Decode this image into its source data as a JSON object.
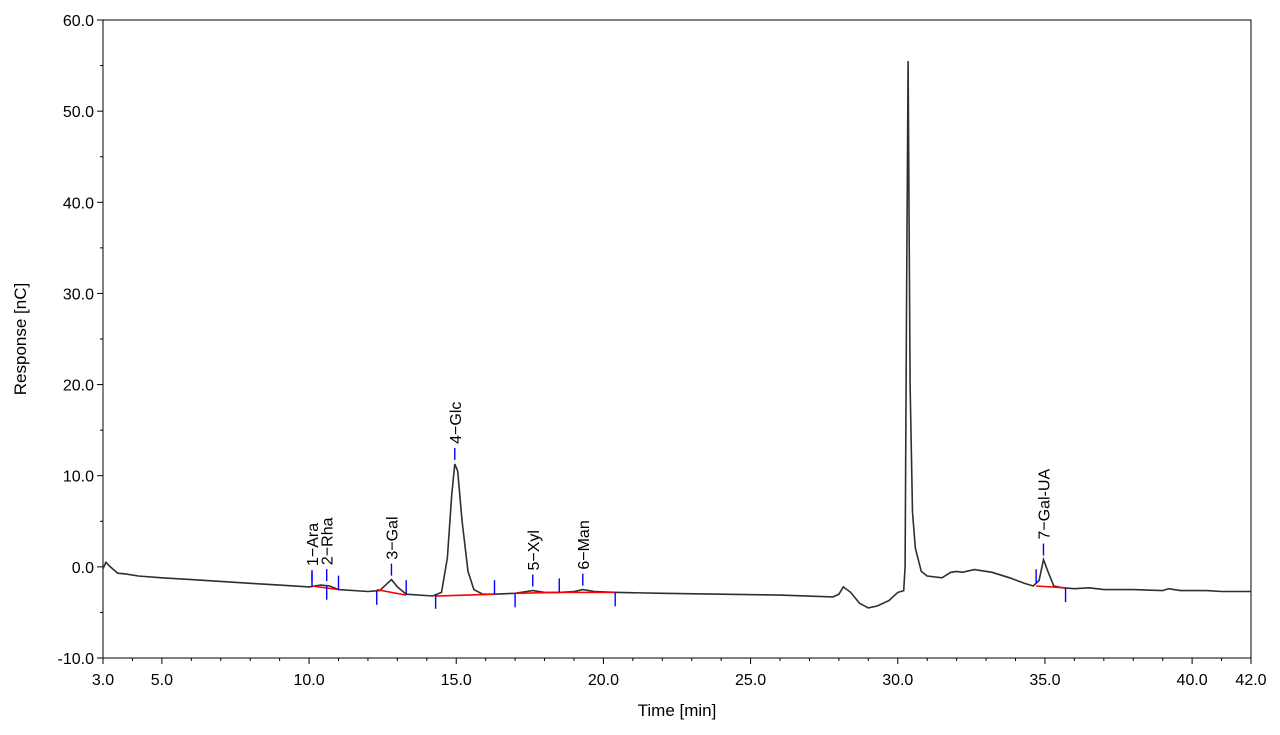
{
  "colors": {
    "trace": "#2f2f2f",
    "baseline": "#ff0000",
    "markers": "#0000ff",
    "axis": "#000000"
  },
  "chart_data": {
    "type": "line",
    "title": "",
    "xlabel": "Time [min]",
    "ylabel": "Response [nC]",
    "xlim": [
      3.0,
      42.0
    ],
    "ylim": [
      -10.0,
      60.0
    ],
    "grid": false,
    "x_ticks": [
      {
        "value": 3.0,
        "label": "3.0"
      },
      {
        "value": 5.0,
        "label": "5.0"
      },
      {
        "value": 10.0,
        "label": "10.0"
      },
      {
        "value": 15.0,
        "label": "15.0"
      },
      {
        "value": 20.0,
        "label": "20.0"
      },
      {
        "value": 25.0,
        "label": "25.0"
      },
      {
        "value": 30.0,
        "label": "30.0"
      },
      {
        "value": 35.0,
        "label": "35.0"
      },
      {
        "value": 40.0,
        "label": "40.0"
      },
      {
        "value": 42.0,
        "label": "42.0"
      }
    ],
    "y_ticks": [
      {
        "value": -10.0,
        "label": "-10.0"
      },
      {
        "value": 0.0,
        "label": "0.0"
      },
      {
        "value": 10.0,
        "label": "10.0"
      },
      {
        "value": 20.0,
        "label": "20.0"
      },
      {
        "value": 30.0,
        "label": "30.0"
      },
      {
        "value": 40.0,
        "label": "40.0"
      },
      {
        "value": 50.0,
        "label": "50.0"
      },
      {
        "value": 60.0,
        "label": "60.0"
      }
    ],
    "trace": [
      [
        3.0,
        -0.2
      ],
      [
        3.1,
        0.5
      ],
      [
        3.25,
        0.0
      ],
      [
        3.5,
        -0.7
      ],
      [
        3.8,
        -0.8
      ],
      [
        4.2,
        -1.0
      ],
      [
        5.0,
        -1.2
      ],
      [
        6.0,
        -1.4
      ],
      [
        7.0,
        -1.6
      ],
      [
        8.0,
        -1.8
      ],
      [
        9.0,
        -2.0
      ],
      [
        10.0,
        -2.2
      ],
      [
        10.4,
        -2.0
      ],
      [
        10.7,
        -2.1
      ],
      [
        11.0,
        -2.5
      ],
      [
        12.0,
        -2.7
      ],
      [
        12.4,
        -2.6
      ],
      [
        12.6,
        -2.0
      ],
      [
        12.8,
        -1.4
      ],
      [
        13.0,
        -2.2
      ],
      [
        13.3,
        -3.0
      ],
      [
        14.2,
        -3.2
      ],
      [
        14.5,
        -2.8
      ],
      [
        14.7,
        1.0
      ],
      [
        14.85,
        8.0
      ],
      [
        14.95,
        11.3
      ],
      [
        15.05,
        10.5
      ],
      [
        15.2,
        5.0
      ],
      [
        15.4,
        -0.5
      ],
      [
        15.6,
        -2.5
      ],
      [
        15.9,
        -3.0
      ],
      [
        16.3,
        -3.0
      ],
      [
        17.0,
        -2.9
      ],
      [
        17.6,
        -2.6
      ],
      [
        18.0,
        -2.8
      ],
      [
        18.5,
        -2.8
      ],
      [
        19.0,
        -2.7
      ],
      [
        19.3,
        -2.5
      ],
      [
        19.7,
        -2.7
      ],
      [
        20.5,
        -2.8
      ],
      [
        22.0,
        -2.9
      ],
      [
        24.0,
        -3.0
      ],
      [
        26.0,
        -3.1
      ],
      [
        27.8,
        -3.3
      ],
      [
        28.0,
        -3.0
      ],
      [
        28.15,
        -2.2
      ],
      [
        28.4,
        -2.8
      ],
      [
        28.7,
        -4.0
      ],
      [
        29.0,
        -4.5
      ],
      [
        29.3,
        -4.3
      ],
      [
        29.7,
        -3.7
      ],
      [
        30.0,
        -2.8
      ],
      [
        30.2,
        -2.6
      ],
      [
        30.25,
        0.0
      ],
      [
        30.3,
        30.0
      ],
      [
        30.35,
        55.5
      ],
      [
        30.42,
        20.0
      ],
      [
        30.5,
        6.0
      ],
      [
        30.6,
        2.0
      ],
      [
        30.8,
        -0.5
      ],
      [
        31.0,
        -1.0
      ],
      [
        31.5,
        -1.2
      ],
      [
        31.8,
        -0.6
      ],
      [
        32.0,
        -0.5
      ],
      [
        32.2,
        -0.6
      ],
      [
        32.6,
        -0.3
      ],
      [
        33.2,
        -0.6
      ],
      [
        33.8,
        -1.2
      ],
      [
        34.3,
        -1.8
      ],
      [
        34.6,
        -2.1
      ],
      [
        34.8,
        -1.5
      ],
      [
        34.95,
        0.8
      ],
      [
        35.1,
        -0.5
      ],
      [
        35.3,
        -2.1
      ],
      [
        35.6,
        -2.3
      ],
      [
        36.0,
        -2.4
      ],
      [
        36.5,
        -2.3
      ],
      [
        37.0,
        -2.5
      ],
      [
        38.0,
        -2.5
      ],
      [
        39.0,
        -2.6
      ],
      [
        39.2,
        -2.4
      ],
      [
        39.6,
        -2.6
      ],
      [
        40.5,
        -2.6
      ],
      [
        41.0,
        -2.7
      ],
      [
        42.0,
        -2.7
      ]
    ],
    "baselines": [
      [
        [
          10.1,
          -2.1
        ],
        [
          11.0,
          -2.5
        ]
      ],
      [
        [
          12.3,
          -2.5
        ],
        [
          13.3,
          -3.1
        ]
      ],
      [
        [
          14.3,
          -3.2
        ],
        [
          16.3,
          -3.0
        ]
      ],
      [
        [
          17.0,
          -2.9
        ],
        [
          18.5,
          -2.8
        ]
      ],
      [
        [
          18.5,
          -2.8
        ],
        [
          20.4,
          -2.8
        ]
      ],
      [
        [
          34.7,
          -2.1
        ],
        [
          35.7,
          -2.3
        ]
      ]
    ],
    "markers": [
      10.1,
      10.6,
      11.0,
      12.3,
      13.3,
      14.3,
      16.3,
      17.0,
      18.5,
      20.4,
      34.7,
      35.7
    ],
    "peaks": [
      {
        "label": "1−Ara",
        "x": 10.1,
        "y": -2.1
      },
      {
        "label": "2−Rha",
        "x": 10.6,
        "y": -2.0
      },
      {
        "label": "3−Gal",
        "x": 12.8,
        "y": -1.4
      },
      {
        "label": "4−Glc",
        "x": 14.95,
        "y": 11.3
      },
      {
        "label": "5−Xyl",
        "x": 17.6,
        "y": -2.6
      },
      {
        "label": "6−Man",
        "x": 19.3,
        "y": -2.5
      },
      {
        "label": "7−Gal-UA",
        "x": 34.95,
        "y": 0.8
      }
    ]
  }
}
